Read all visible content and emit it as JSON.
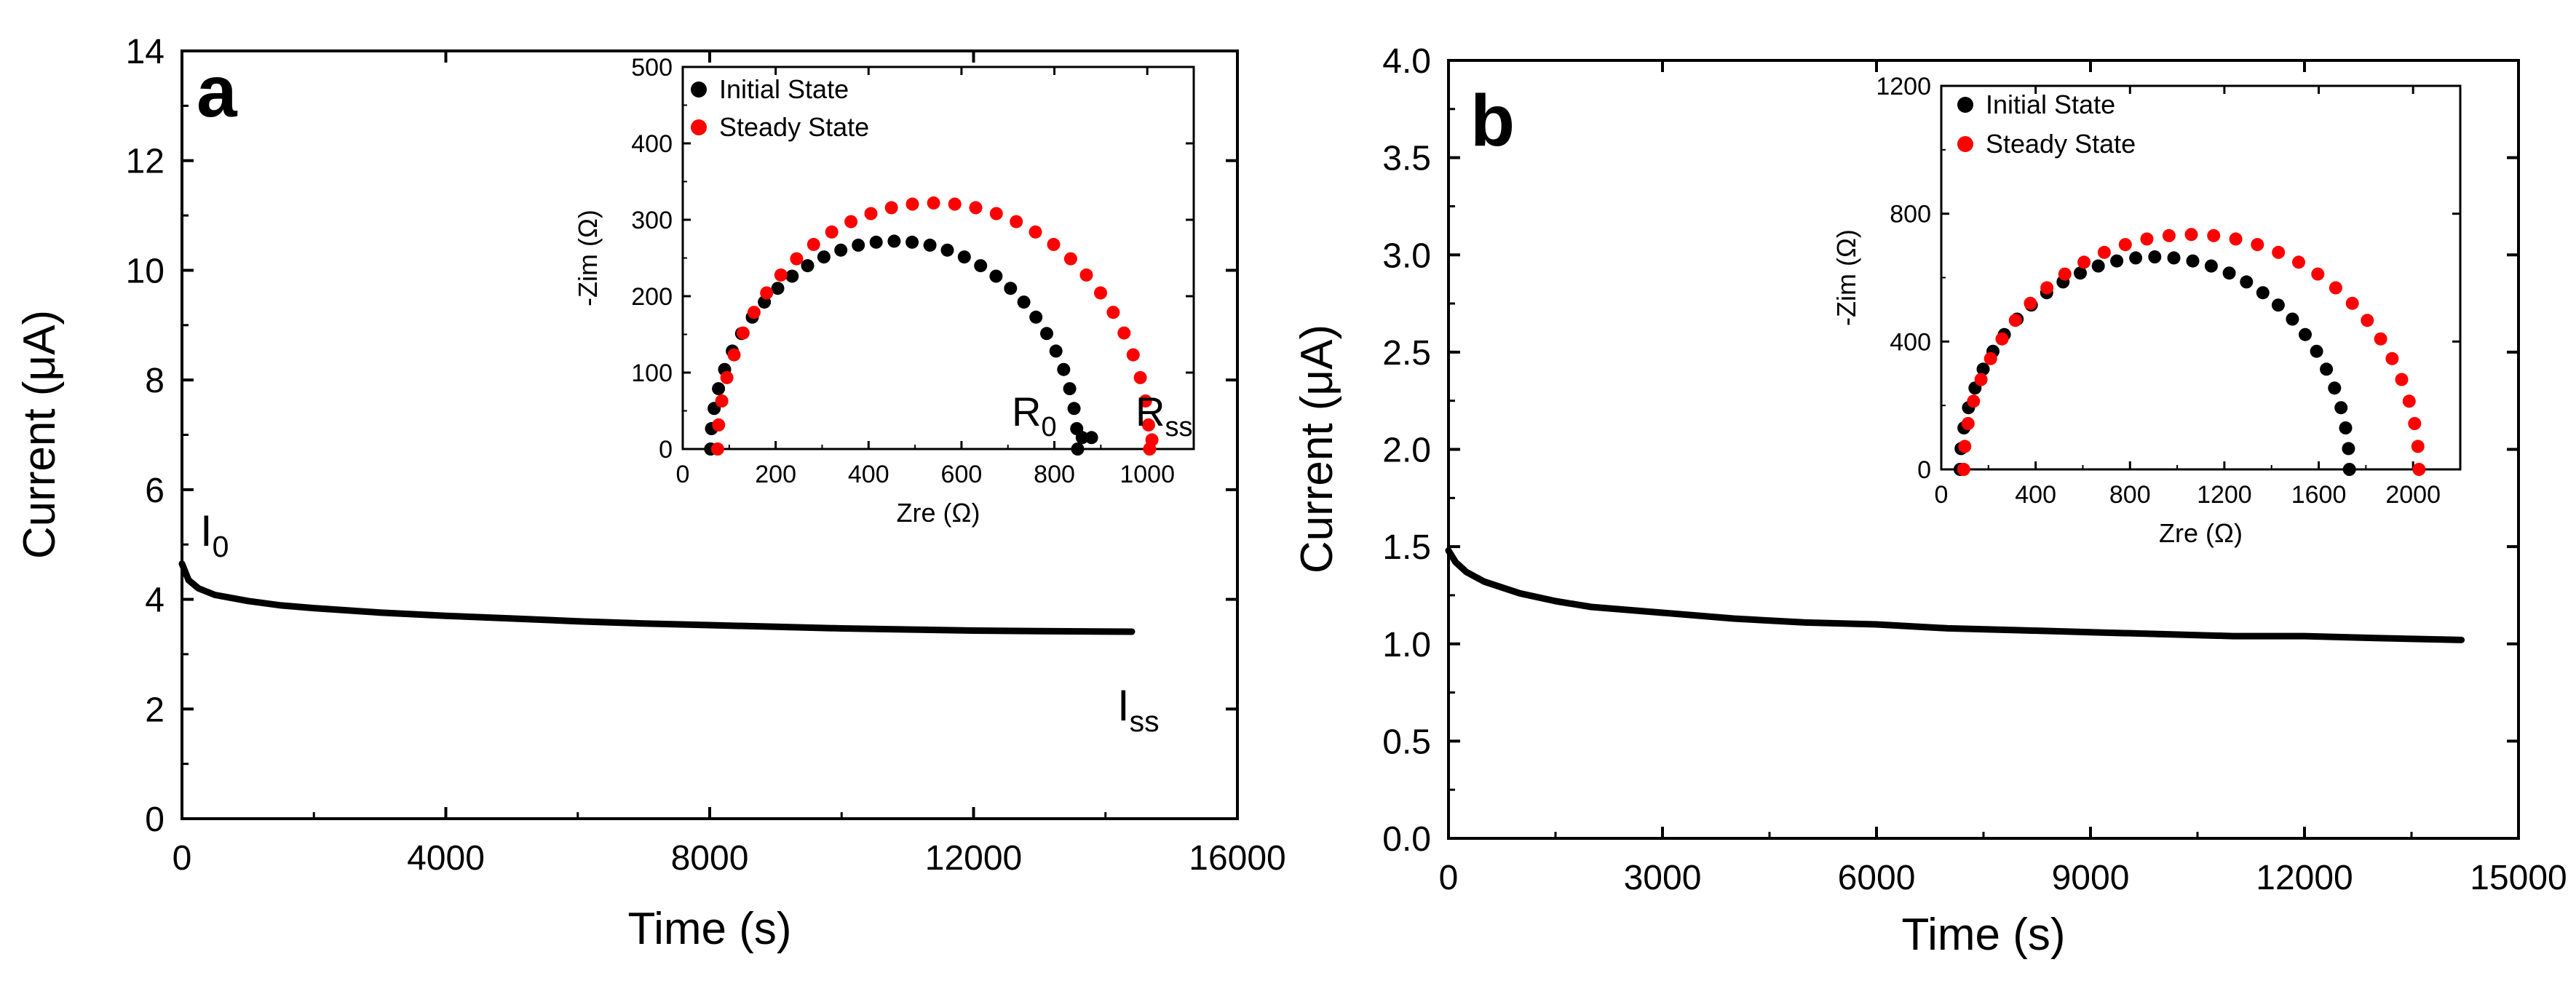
{
  "chart_data": [
    {
      "panel": "a",
      "type": "line",
      "panel_label": "a",
      "xlabel": "Time (s)",
      "ylabel": "Current (μA)",
      "xlim": [
        0,
        16000
      ],
      "ylim": [
        0,
        14
      ],
      "xticks": [
        0,
        4000,
        8000,
        12000,
        16000
      ],
      "xtick_labels": [
        "0",
        "4000",
        "8000",
        "12000",
        "16000"
      ],
      "yticks": [
        0,
        2,
        4,
        6,
        8,
        10,
        12,
        14
      ],
      "ytick_labels": [
        "0",
        "2",
        "4",
        "6",
        "8",
        "10",
        "12",
        "14"
      ],
      "annotations": [
        {
          "main": "I",
          "sub": "0",
          "at": [
            200,
            5.1
          ]
        },
        {
          "main": "I",
          "sub": "ss",
          "at": [
            14500,
            1.7
          ]
        }
      ],
      "series": [
        {
          "name": "Current",
          "color": "#000000",
          "x": [
            0,
            100,
            250,
            500,
            1000,
            1500,
            2000,
            3000,
            4000,
            5000,
            6000,
            7000,
            8000,
            9000,
            10000,
            11000,
            12000,
            13000,
            14400
          ],
          "y": [
            4.65,
            4.35,
            4.2,
            4.08,
            3.97,
            3.89,
            3.84,
            3.76,
            3.7,
            3.65,
            3.6,
            3.56,
            3.53,
            3.5,
            3.47,
            3.45,
            3.43,
            3.42,
            3.41
          ]
        }
      ],
      "inset": {
        "type": "scatter",
        "xlabel": "Zre (Ω)",
        "ylabel": "-Zim (Ω)",
        "xlim": [
          0,
          1100
        ],
        "ylim": [
          0,
          500
        ],
        "xticks": [
          0,
          200,
          400,
          600,
          800,
          1000
        ],
        "xtick_labels": [
          "0",
          "200",
          "400",
          "600",
          "800",
          "1000"
        ],
        "yticks": [
          0,
          100,
          200,
          300,
          400,
          500
        ],
        "ytick_labels": [
          "0",
          "100",
          "200",
          "300",
          "400",
          "500"
        ],
        "legend": [
          "Initial State",
          "Steady State"
        ],
        "annotations": [
          {
            "main": "R",
            "sub": "0",
            "at": [
              730,
              25
            ]
          },
          {
            "main": "R",
            "sub": "ss",
            "at": [
              910,
              25
            ]
          }
        ],
        "series": [
          {
            "name": "Initial State",
            "color": "#000000",
            "semicircle": {
              "start": 60,
              "end": 850,
              "peak": 272
            },
            "tail": [
              [
                860,
                15
              ],
              [
                880,
                15
              ]
            ]
          },
          {
            "name": "Steady State",
            "color": "#ff0000",
            "semicircle": {
              "start": 75,
              "end": 1005,
              "peak": 322
            },
            "tail": [
              [
                1010,
                12
              ]
            ]
          }
        ]
      }
    },
    {
      "panel": "b",
      "type": "line",
      "panel_label": "b",
      "xlabel": "Time (s)",
      "ylabel": "Current (μA)",
      "xlim": [
        0,
        15000
      ],
      "ylim": [
        0,
        4
      ],
      "xticks": [
        0,
        3000,
        6000,
        9000,
        12000,
        15000
      ],
      "xtick_labels": [
        "0",
        "3000",
        "6000",
        "9000",
        "12000",
        "15000"
      ],
      "yticks": [
        0,
        0.5,
        1,
        1.5,
        2,
        2.5,
        3,
        3.5,
        4
      ],
      "ytick_labels": [
        "0.0",
        "0.5",
        "1.0",
        "1.5",
        "2.0",
        "2.5",
        "3.0",
        "3.5",
        "4.0"
      ],
      "series": [
        {
          "name": "Current",
          "color": "#000000",
          "x": [
            0,
            100,
            250,
            500,
            1000,
            1500,
            2000,
            3000,
            4000,
            5000,
            6000,
            7000,
            8000,
            9000,
            10000,
            11000,
            12000,
            13000,
            14200
          ],
          "y": [
            1.48,
            1.42,
            1.37,
            1.32,
            1.26,
            1.22,
            1.19,
            1.16,
            1.13,
            1.11,
            1.1,
            1.08,
            1.07,
            1.06,
            1.05,
            1.04,
            1.04,
            1.03,
            1.02
          ]
        }
      ],
      "inset": {
        "type": "scatter",
        "xlabel": "Zre (Ω)",
        "ylabel": "-Zim (Ω)",
        "xlim": [
          0,
          2200
        ],
        "ylim": [
          0,
          1200
        ],
        "xticks": [
          0,
          400,
          800,
          1200,
          1600,
          2000
        ],
        "xtick_labels": [
          "0",
          "400",
          "800",
          "1200",
          "1600",
          "2000"
        ],
        "yticks": [
          0,
          400,
          800,
          1200
        ],
        "ytick_labels": [
          "0",
          "400",
          "800",
          "1200"
        ],
        "legend": [
          "Initial State",
          "Steady State"
        ],
        "series": [
          {
            "name": "Initial State",
            "color": "#000000",
            "semicircle": {
              "start": 80,
              "end": 1730,
              "peak": 665
            },
            "tail": []
          },
          {
            "name": "Steady State",
            "color": "#ff0000",
            "semicircle": {
              "start": 95,
              "end": 2025,
              "peak": 735
            },
            "tail": []
          }
        ]
      }
    }
  ]
}
